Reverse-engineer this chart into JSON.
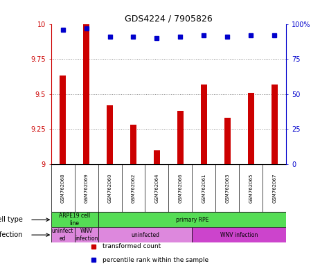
{
  "title": "GDS4224 / 7905826",
  "samples": [
    "GSM762068",
    "GSM762069",
    "GSM762060",
    "GSM762062",
    "GSM762064",
    "GSM762066",
    "GSM762061",
    "GSM762063",
    "GSM762065",
    "GSM762067"
  ],
  "transformed_count": [
    9.63,
    10.0,
    9.42,
    9.28,
    9.1,
    9.38,
    9.57,
    9.33,
    9.51,
    9.57
  ],
  "percentile_rank": [
    96,
    97,
    91,
    91,
    90,
    91,
    92,
    91,
    92,
    92
  ],
  "ylim": [
    9.0,
    10.0
  ],
  "yticks": [
    9.0,
    9.25,
    9.5,
    9.75,
    10.0
  ],
  "ytick_labels": [
    "9",
    "9.25",
    "9.5",
    "9.75",
    "10"
  ],
  "right_yticks": [
    0,
    25,
    50,
    75,
    100
  ],
  "right_ytick_labels": [
    "0",
    "25",
    "50",
    "75",
    "100%"
  ],
  "bar_color": "#cc0000",
  "dot_color": "#0000cc",
  "bar_width": 0.25,
  "grid_color": "#888888",
  "cell_type_color": "#55dd55",
  "infection_color_light": "#dd88dd",
  "infection_color_dark": "#cc44cc",
  "sample_bg_color": "#cccccc",
  "cell_type_label": "cell type",
  "infection_label": "infection",
  "legend_items": [
    {
      "label": "transformed count",
      "color": "#cc0000"
    },
    {
      "label": "percentile rank within the sample",
      "color": "#0000cc"
    }
  ],
  "bg_color": "#ffffff",
  "tick_label_color_left": "#cc0000",
  "tick_label_color_right": "#0000cc",
  "infection_groups": [
    {
      "label": "uninfect\ned",
      "start": 0,
      "end": 1
    },
    {
      "label": "WNV\ninfection",
      "start": 1,
      "end": 2
    },
    {
      "label": "uninfected",
      "start": 2,
      "end": 6
    },
    {
      "label": "WNV infection",
      "start": 6,
      "end": 10
    }
  ],
  "cell_groups": [
    {
      "label": "ARPE19 cell\nline",
      "start": 0,
      "end": 2
    },
    {
      "label": "primary RPE",
      "start": 2,
      "end": 10
    }
  ]
}
